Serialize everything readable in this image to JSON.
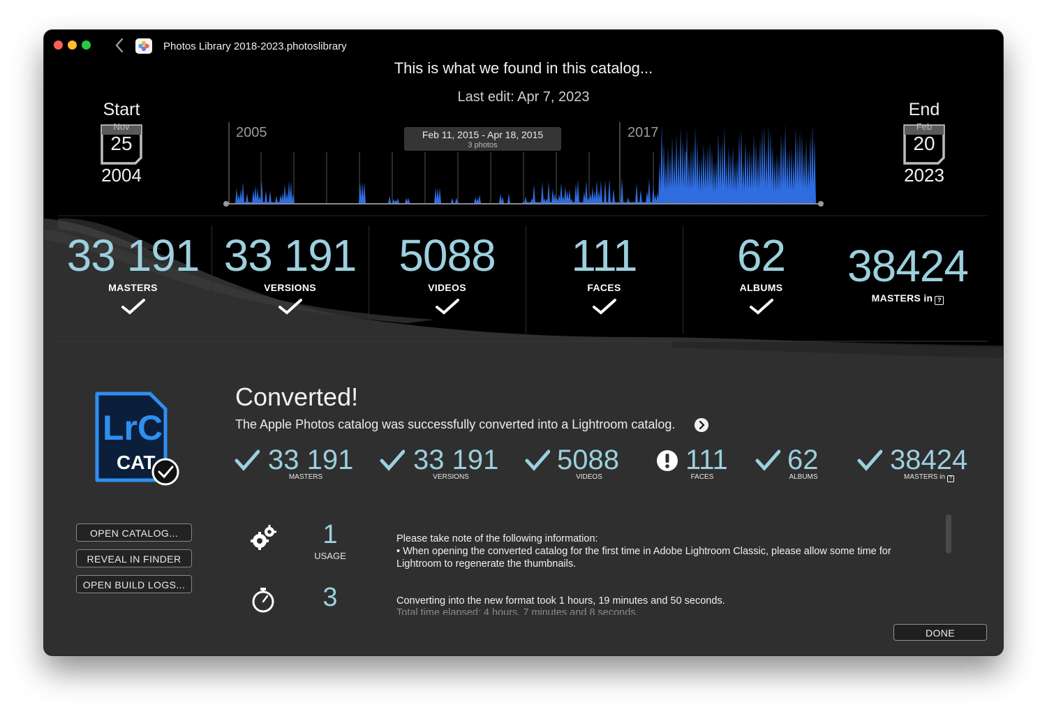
{
  "window": {
    "title": "Photos Library 2018-2023.photoslibrary"
  },
  "header": {
    "headline": "This is what we found in this catalog...",
    "last_edit": "Last edit: Apr 7, 2023"
  },
  "start": {
    "label": "Start",
    "month": "Nov",
    "day": "25",
    "year": "2004"
  },
  "end": {
    "label": "End",
    "month": "Feb",
    "day": "20",
    "year": "2023"
  },
  "timeline": {
    "year_labels": [
      "2005",
      "2017"
    ],
    "tooltip": {
      "range": "Feb 11, 2015 - Apr 18, 2015",
      "count": "3 photos"
    },
    "accent_color": "#2f6de0"
  },
  "summary": [
    {
      "value": "33 191",
      "label": "MASTERS",
      "checked": true
    },
    {
      "value": "33 191",
      "label": "VERSIONS",
      "checked": true
    },
    {
      "value": "5088",
      "label": "VIDEOS",
      "checked": true
    },
    {
      "value": "111",
      "label": "FACES",
      "checked": true
    },
    {
      "value": "62",
      "label": "ALBUMS",
      "checked": true
    },
    {
      "value": "38424",
      "label": "MASTERS in",
      "checked": false
    }
  ],
  "converted": {
    "title": "Converted!",
    "description": "The Apple Photos catalog was successfully converted into a Lightroom catalog.",
    "badge_top": "LrC",
    "badge_bottom": "CAT",
    "results": [
      {
        "value": "33 191",
        "label": "MASTERS",
        "status": "check-icon"
      },
      {
        "value": "33 191",
        "label": "VERSIONS",
        "status": "check-icon"
      },
      {
        "value": "5088",
        "label": "VIDEOS",
        "status": "check-icon"
      },
      {
        "value": "111",
        "label": "FACES",
        "status": "warning-icon"
      },
      {
        "value": "62",
        "label": "ALBUMS",
        "status": "check-icon"
      },
      {
        "value": "38424",
        "label": "MASTERS in",
        "status": "check-icon"
      }
    ]
  },
  "actions": {
    "open_catalog": "OPEN CATALOG...",
    "reveal": "REVEAL IN FINDER",
    "build_logs": "OPEN BUILD LOGS..."
  },
  "metrics": {
    "usage_value": "1",
    "usage_label": "USAGE",
    "time_value": "3"
  },
  "notes": {
    "line1": "Please take note of the following information:",
    "line2": "• When opening the converted catalog for the first time in Adobe Lightroom Classic, please allow some time for Lightroom to regenerate the thumbnails.",
    "time1": "Converting into the new format took 1 hours, 19 minutes and 50 seconds.",
    "time2": "Total time elapsed: 4 hours, 7 minutes and 8 seconds."
  },
  "done_label": "DONE",
  "colors": {
    "stat": "#9cd0de",
    "panel": "#2f2f30",
    "background": "#000000"
  }
}
